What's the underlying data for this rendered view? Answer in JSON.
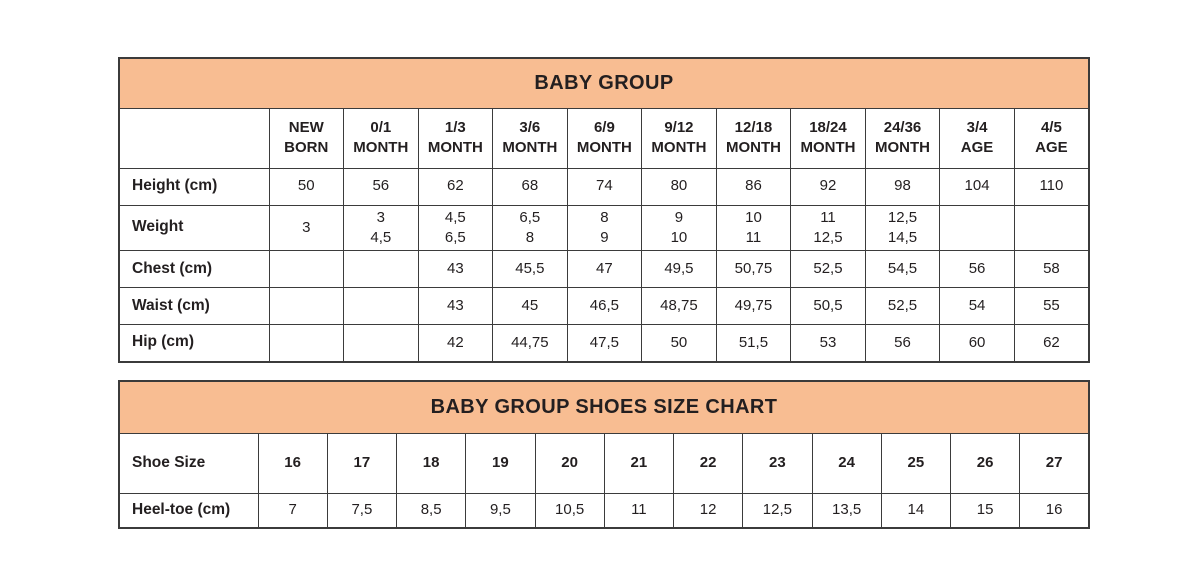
{
  "colors": {
    "header_bg": "#f8bd92",
    "border": "#3b3b3b",
    "text": "#231f20",
    "background": "#ffffff"
  },
  "chart_data": [
    {
      "type": "table",
      "title": "BABY GROUP",
      "columns": [
        "",
        "NEW\nBORN",
        "0/1\nMONTH",
        "1/3\nMONTH",
        "3/6\nMONTH",
        "6/9\nMONTH",
        "9/12\nMONTH",
        "12/18\nMONTH",
        "18/24\nMONTH",
        "24/36\nMONTH",
        "3/4\nAGE",
        "4/5\nAGE"
      ],
      "rows": [
        {
          "label": "Height (cm)",
          "values": [
            "50",
            "56",
            "62",
            "68",
            "74",
            "80",
            "86",
            "92",
            "98",
            "104",
            "110"
          ]
        },
        {
          "label": "Weight",
          "values": [
            "3",
            "3\n4,5",
            "4,5\n6,5",
            "6,5\n8",
            "8\n9",
            "9\n10",
            "10\n11",
            "11\n12,5",
            "12,5\n14,5",
            "",
            ""
          ]
        },
        {
          "label": "Chest (cm)",
          "values": [
            "",
            "",
            "43",
            "45,5",
            "47",
            "49,5",
            "50,75",
            "52,5",
            "54,5",
            "56",
            "58"
          ]
        },
        {
          "label": "Waist (cm)",
          "values": [
            "",
            "",
            "43",
            "45",
            "46,5",
            "48,75",
            "49,75",
            "50,5",
            "52,5",
            "54",
            "55"
          ]
        },
        {
          "label": "Hip (cm)",
          "values": [
            "",
            "",
            "42",
            "44,75",
            "47,5",
            "50",
            "51,5",
            "53",
            "56",
            "60",
            "62"
          ]
        }
      ]
    },
    {
      "type": "table",
      "title": "BABY GROUP SHOES SIZE CHART",
      "rows": [
        {
          "label": "Shoe Size",
          "header": true,
          "values": [
            "16",
            "17",
            "18",
            "19",
            "20",
            "21",
            "22",
            "23",
            "24",
            "25",
            "26",
            "27"
          ]
        },
        {
          "label": "Heel-toe (cm)",
          "values": [
            "7",
            "7,5",
            "8,5",
            "9,5",
            "10,5",
            "11",
            "12",
            "12,5",
            "13,5",
            "14",
            "15",
            "16"
          ]
        }
      ]
    }
  ]
}
